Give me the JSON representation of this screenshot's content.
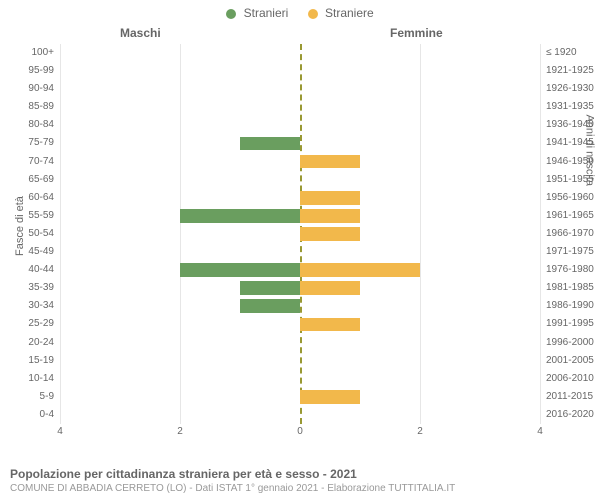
{
  "legend": {
    "male": {
      "label": "Stranieri",
      "color": "#6a9e5f"
    },
    "female": {
      "label": "Straniere",
      "color": "#f2b84b"
    }
  },
  "chart": {
    "type": "population-pyramid",
    "header_left": "Maschi",
    "header_right": "Femmine",
    "y_title_left": "Fasce di età",
    "y_title_right": "Anni di nascita",
    "x_max": 4,
    "x_ticks": [
      4,
      2,
      0,
      2,
      4
    ],
    "grid_color": "#e6e6e6",
    "center_line_color": "#999933",
    "bar_male_color": "#6a9e5f",
    "bar_female_color": "#f2b84b",
    "label_color": "#666666",
    "label_fontsize": 10,
    "rows": [
      {
        "age": "100+",
        "birth": "≤ 1920",
        "m": 0,
        "f": 0
      },
      {
        "age": "95-99",
        "birth": "1921-1925",
        "m": 0,
        "f": 0
      },
      {
        "age": "90-94",
        "birth": "1926-1930",
        "m": 0,
        "f": 0
      },
      {
        "age": "85-89",
        "birth": "1931-1935",
        "m": 0,
        "f": 0
      },
      {
        "age": "80-84",
        "birth": "1936-1940",
        "m": 0,
        "f": 0
      },
      {
        "age": "75-79",
        "birth": "1941-1945",
        "m": 1,
        "f": 0
      },
      {
        "age": "70-74",
        "birth": "1946-1950",
        "m": 0,
        "f": 1
      },
      {
        "age": "65-69",
        "birth": "1951-1955",
        "m": 0,
        "f": 0
      },
      {
        "age": "60-64",
        "birth": "1956-1960",
        "m": 0,
        "f": 1
      },
      {
        "age": "55-59",
        "birth": "1961-1965",
        "m": 2,
        "f": 1
      },
      {
        "age": "50-54",
        "birth": "1966-1970",
        "m": 0,
        "f": 1
      },
      {
        "age": "45-49",
        "birth": "1971-1975",
        "m": 0,
        "f": 0
      },
      {
        "age": "40-44",
        "birth": "1976-1980",
        "m": 2,
        "f": 2
      },
      {
        "age": "35-39",
        "birth": "1981-1985",
        "m": 1,
        "f": 1
      },
      {
        "age": "30-34",
        "birth": "1986-1990",
        "m": 1,
        "f": 0
      },
      {
        "age": "25-29",
        "birth": "1991-1995",
        "m": 0,
        "f": 1
      },
      {
        "age": "20-24",
        "birth": "1996-2000",
        "m": 0,
        "f": 0
      },
      {
        "age": "15-19",
        "birth": "2001-2005",
        "m": 0,
        "f": 0
      },
      {
        "age": "10-14",
        "birth": "2006-2010",
        "m": 0,
        "f": 0
      },
      {
        "age": "5-9",
        "birth": "2011-2015",
        "m": 0,
        "f": 1
      },
      {
        "age": "0-4",
        "birth": "2016-2020",
        "m": 0,
        "f": 0
      }
    ]
  },
  "footer": {
    "title": "Popolazione per cittadinanza straniera per età e sesso - 2021",
    "subtitle": "COMUNE DI ABBADIA CERRETO (LO) - Dati ISTAT 1° gennaio 2021 - Elaborazione TUTTITALIA.IT"
  }
}
